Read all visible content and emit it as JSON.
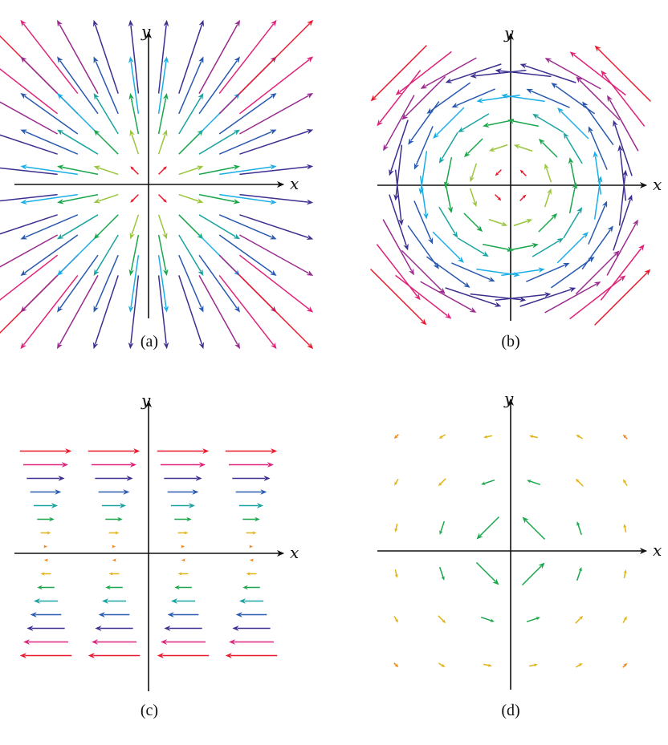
{
  "panels": [
    {
      "id": "a",
      "caption": "(a)",
      "x_label": "x",
      "y_label": "y",
      "field": "radial"
    },
    {
      "id": "b",
      "caption": "(b)",
      "x_label": "x",
      "y_label": "y",
      "field": "rotational"
    },
    {
      "id": "c",
      "caption": "(c)",
      "x_label": "x",
      "y_label": "y",
      "field": "shear"
    },
    {
      "id": "d",
      "caption": "(d)",
      "x_label": "x",
      "y_label": "y",
      "field": "inverse-rotational"
    }
  ],
  "colors": {
    "magnitude_scale": [
      "#e8192c",
      "#f08a1c",
      "#e0b416",
      "#9bc53d",
      "#1aa64a",
      "#1aa3a0",
      "#19aee6",
      "#2a5ab0",
      "#3b2f8f",
      "#9a2a8e",
      "#e0237a",
      "#e8192c"
    ],
    "axis": "#111111"
  }
}
